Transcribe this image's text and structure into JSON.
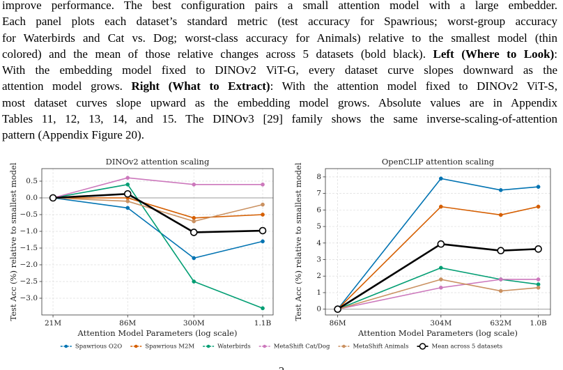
{
  "caption": {
    "lines": [
      [
        {
          "text": "improve performance. The best configuration pairs a small attention model with a large embedder.",
          "bold": false
        }
      ],
      [
        {
          "text": "Each panel plots each dataset’s standard metric (test accuracy for Spawrious; worst-group accuracy",
          "bold": false
        }
      ],
      [
        {
          "text": "for Waterbirds and Cat vs. Dog; worst-class accuracy for Animals) relative to the smallest model (thin",
          "bold": false
        }
      ],
      [
        {
          "text": "colored) and the mean of those relative changes across 5 datasets (bold black).",
          "bold": false
        },
        {
          "text": "Left (Where to Look)",
          "bold": true
        },
        {
          "text": ":",
          "bold": false
        }
      ],
      [
        {
          "text": "With the embedding model fixed to DINOv2 ViT-G, every dataset curve slopes downward as the",
          "bold": false
        }
      ],
      [
        {
          "text": "attention model grows.",
          "bold": false
        },
        {
          "text": "Right (What to Extract)",
          "bold": true
        },
        {
          "text": ": With the attention model fixed to DINOv2 ViT-S,",
          "bold": false
        }
      ],
      [
        {
          "text": "most dataset curves slope upward as the embedding model grows. Absolute values are in Appendix",
          "bold": false
        }
      ],
      [
        {
          "text": "Tables 11, 12, 13, 14, and 15. The DINOv3 [29] family shows the same inverse-scaling-of-attention",
          "bold": false
        }
      ],
      [
        {
          "text": "pattern (Appendix Figure 20).",
          "bold": false
        }
      ]
    ]
  },
  "chart_data": [
    {
      "type": "line",
      "title": "DINOv2 attention scaling",
      "x_label": "Attention Model Parameters (log scale)",
      "y_label": "Test Acc (%) relative to smallest model",
      "x": [
        21000000,
        86000000,
        300000000,
        1100000000
      ],
      "xlim": [
        17000000,
        1340000000
      ],
      "xscale": "log",
      "xticks": [
        {
          "value": 21000000,
          "label": "21M"
        },
        {
          "value": 86000000,
          "label": "86M"
        },
        {
          "value": 300000000,
          "label": "300M"
        },
        {
          "value": 1100000000,
          "label": "1.1B"
        }
      ],
      "ylim": [
        -3.5,
        0.875
      ],
      "yticks": [
        0.5,
        {
          "value": 0,
          "label": "0.0"
        },
        {
          "value": -0.5,
          "label": "−0.5"
        },
        {
          "value": -1,
          "label": "−1.0"
        },
        {
          "value": -1.5,
          "label": "−1.5"
        },
        {
          "value": -2,
          "label": "−2.0"
        },
        {
          "value": -2.5,
          "label": "−2.5"
        },
        {
          "value": -3,
          "label": "−3.0"
        }
      ],
      "grid": true,
      "series": [
        {
          "name": "Spawrious O2O",
          "color": "#0173b2",
          "marker": "filled",
          "line_width": 1.6,
          "values": [
            0,
            -0.3,
            -1.8,
            -1.3
          ]
        },
        {
          "name": "Spawrious M2M",
          "color": "#d55e00",
          "marker": "filled",
          "line_width": 1.6,
          "values": [
            0,
            0.0,
            -0.6,
            -0.5
          ]
        },
        {
          "name": "Waterbirds",
          "color": "#029e73",
          "marker": "filled",
          "line_width": 1.6,
          "values": [
            0,
            0.4,
            -2.5,
            -3.3
          ]
        },
        {
          "name": "MetaShift Cat/Dog",
          "color": "#cc78bc",
          "marker": "filled",
          "line_width": 1.6,
          "values": [
            0,
            0.6,
            0.4,
            0.4
          ]
        },
        {
          "name": "MetaShift Animals",
          "color": "#ca9161",
          "marker": "filled",
          "line_width": 1.6,
          "values": [
            0,
            -0.1,
            -0.7,
            -0.2
          ]
        },
        {
          "name": "Mean across 5 datasets",
          "color": "#000000",
          "marker": "hollow",
          "line_width": 2.6,
          "values": [
            0,
            0.12,
            -1.03,
            -0.98
          ]
        }
      ]
    },
    {
      "type": "line",
      "title": "OpenCLIP attention scaling",
      "x_label": "Attention Model Parameters (log scale)",
      "y_label": "Test Acc (%) relative to smallest model",
      "x": [
        86000000,
        304000000,
        632000000,
        1000000000
      ],
      "xlim": [
        74000000,
        1160000000
      ],
      "xscale": "log",
      "xticks": [
        {
          "value": 86000000,
          "label": "86M"
        },
        {
          "value": 304000000,
          "label": "304M"
        },
        {
          "value": 632000000,
          "label": "632M"
        },
        {
          "value": 1000000000,
          "label": "1.0B"
        }
      ],
      "ylim": [
        -0.35,
        8.5
      ],
      "yticks": [
        0,
        1,
        2,
        3,
        4,
        5,
        6,
        7,
        8
      ],
      "grid": true,
      "series": [
        {
          "name": "Spawrious O2O",
          "color": "#0173b2",
          "marker": "filled",
          "line_width": 1.6,
          "values": [
            0,
            7.9,
            7.2,
            7.4
          ]
        },
        {
          "name": "Spawrious M2M",
          "color": "#d55e00",
          "marker": "filled",
          "line_width": 1.6,
          "values": [
            0,
            6.2,
            5.7,
            6.2
          ]
        },
        {
          "name": "Waterbirds",
          "color": "#029e73",
          "marker": "filled",
          "line_width": 1.6,
          "values": [
            0,
            2.5,
            1.8,
            1.5
          ]
        },
        {
          "name": "MetaShift Cat/Dog",
          "color": "#cc78bc",
          "marker": "filled",
          "line_width": 1.6,
          "values": [
            0,
            1.3,
            1.8,
            1.8
          ]
        },
        {
          "name": "MetaShift Animals",
          "color": "#ca9161",
          "marker": "filled",
          "line_width": 1.6,
          "values": [
            0,
            1.8,
            1.1,
            1.3
          ]
        },
        {
          "name": "Mean across 5 datasets",
          "color": "#000000",
          "marker": "hollow",
          "line_width": 2.6,
          "values": [
            0,
            3.94,
            3.54,
            3.64
          ]
        }
      ]
    }
  ],
  "page_number": "2"
}
